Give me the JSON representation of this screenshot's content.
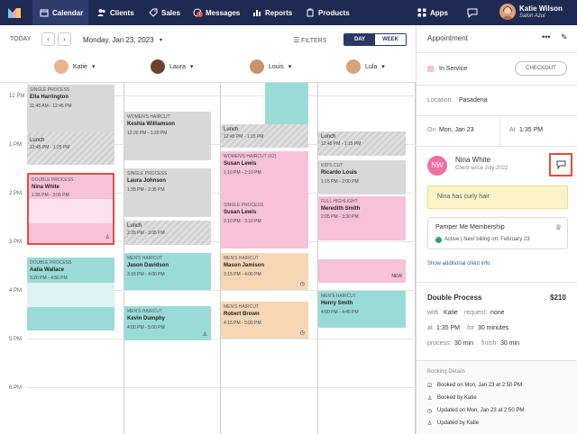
{
  "nav": {
    "items": [
      {
        "label": "Calendar",
        "icon": "calendar-icon",
        "active": true
      },
      {
        "label": "Clients",
        "icon": "clients-icon"
      },
      {
        "label": "Sales",
        "icon": "sales-icon"
      },
      {
        "label": "Messages",
        "icon": "messages-icon",
        "badge": "1"
      },
      {
        "label": "Reports",
        "icon": "reports-icon"
      },
      {
        "label": "Products",
        "icon": "products-icon"
      }
    ],
    "apps_label": "Apps",
    "user_name": "Katie Wilson",
    "user_sub": "Salon Azul"
  },
  "toolbar": {
    "today": "TODAY",
    "prev": "‹",
    "next": "›",
    "date": "Monday, Jan 23, 2023",
    "filters": "FILTERS",
    "day": "DAY",
    "week": "WEEK"
  },
  "staff": [
    {
      "name": "Katie"
    },
    {
      "name": "Laura"
    },
    {
      "name": "Louis"
    },
    {
      "name": "Lula"
    }
  ],
  "times": [
    "12 PM",
    "1 PM",
    "2 PM",
    "3 PM",
    "4 PM",
    "5 PM",
    "6 PM"
  ],
  "appointments": [
    {
      "title": "SINGLE PROCESS",
      "name": "Ella Harrington",
      "time": "11:45 AM - 12:45 PM"
    },
    {
      "title": "",
      "name": "Lunch",
      "time": "12:45 PM - 1:25 PM"
    },
    {
      "title": "DOUBLE PROCESS",
      "name": "Nina White",
      "time": "1:35 PM - 3:05 PM"
    },
    {
      "title": "DOUBLE PROCESS",
      "name": "Aalia Wallace",
      "time": "3:20 PM - 4:50 PM"
    },
    {
      "title": "WOMEN'S HAIRCUT",
      "name": "Keshia Williamson",
      "time": "12:20 PM - 1:20 PM"
    },
    {
      "title": "SINGLE PROCESS",
      "name": "Laura Johnson",
      "time": "1:35 PM - 2:35 PM"
    },
    {
      "title": "",
      "name": "Lunch",
      "time": "2:35 PM - 3:05 PM"
    },
    {
      "title": "MEN'S HAIRCUT",
      "name": "Jason Davidson",
      "time": "3:15 PM - 4:00 PM"
    },
    {
      "title": "MEN'S HAIRCUT",
      "name": "Kevin Dumphy",
      "time": "4:00 PM - 5:00 PM"
    },
    {
      "title": "",
      "name": "Lunch",
      "time": "12:45 PM - 1:15 PM"
    },
    {
      "title": "WOMEN'S HAIRCUT (x2)",
      "name": "Susan Lewis",
      "time": "1:10 PM - 2:10 PM"
    },
    {
      "title": "SINGLE PROCESS",
      "name": "Susan Lewis",
      "time": "2:10 PM - 3:10 PM"
    },
    {
      "title": "MEN'S HAIRCUT",
      "name": "Mason Jamison",
      "time": "3:15 PM - 4:00 PM"
    },
    {
      "title": "MEN'S HAIRCUT",
      "name": "Robert Brown",
      "time": "4:15 PM - 5:00 PM"
    },
    {
      "title": "",
      "name": "Lunch",
      "time": "12:45 PM - 1:15 PM"
    },
    {
      "title": "KID'S CUT",
      "name": "Ricardo Louis",
      "time": "1:15 PM - 2:00 PM"
    },
    {
      "title": "FULL HIGHLIGHT",
      "name": "Meredith Smith",
      "time": "2:05 PM - 3:30 PM"
    },
    {
      "title": "",
      "name": "NEW",
      "time": ""
    },
    {
      "title": "MEN'S HAIRCUT",
      "name": "Henry Smith",
      "time": "4:00 PM - 4:45 PM"
    }
  ],
  "panel": {
    "title": "Appointment",
    "status": "In Service",
    "checkout": "CHECKOUT",
    "location_label": "Location:",
    "location": "Pasadena",
    "on_label": "On",
    "date": "Mon, Jan 23",
    "at_label": "At",
    "time": "1:35 PM",
    "client_initials": "NW",
    "client_name": "Nina White",
    "client_since": "Client since July 2022",
    "note": "Nina has curly hair",
    "membership_title": "Pamper Me Membership",
    "membership_status": "Active | Next billing on: February 23",
    "show_more": "Show additional client info",
    "service": "Double Process",
    "price": "$210",
    "with_label": "with",
    "with": "Katie",
    "request_label": "request:",
    "request": "none",
    "at2_label": "at",
    "at2": "1:35 PM",
    "for_label": "for",
    "duration": "30 minutes",
    "process_label": "process:",
    "process": "30 min",
    "finish_label": "finish:",
    "finish": "30 min",
    "booking_title": "Booking Details",
    "booking": [
      "Booked on Mon, Jan 23 at 2:50 PM",
      "Booked by Katie",
      "Updated on Mon, Jan 23 at 2:50 PM",
      "Updated by Katie"
    ]
  }
}
